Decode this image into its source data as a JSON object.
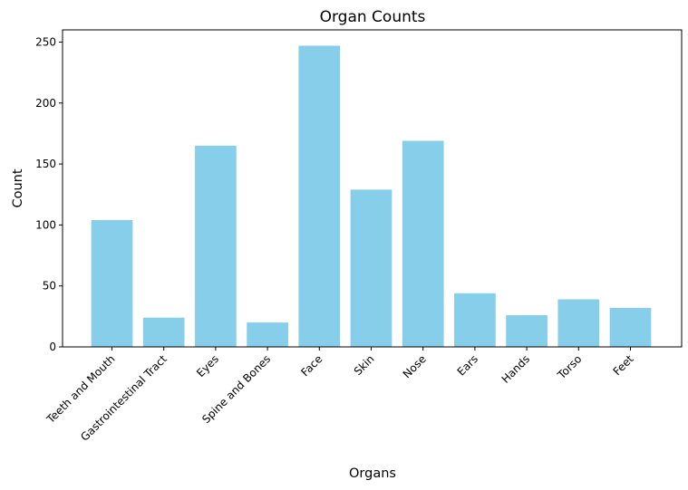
{
  "chart_data": {
    "type": "bar",
    "title": "Organ Counts",
    "xlabel": "Organs",
    "ylabel": "Count",
    "categories": [
      "Teeth and Mouth",
      "Gastrointestinal Tract",
      "Eyes",
      "Spine and Bones",
      "Face",
      "Skin",
      "Nose",
      "Ears",
      "Hands",
      "Torso",
      "Feet"
    ],
    "values": [
      104,
      24,
      165,
      20,
      247,
      129,
      169,
      44,
      26,
      39,
      32
    ],
    "ylim": [
      0,
      260
    ],
    "yticks": [
      0,
      50,
      100,
      150,
      200,
      250
    ],
    "bar_color": "#87ceeb",
    "grid": false,
    "legend": "none"
  }
}
